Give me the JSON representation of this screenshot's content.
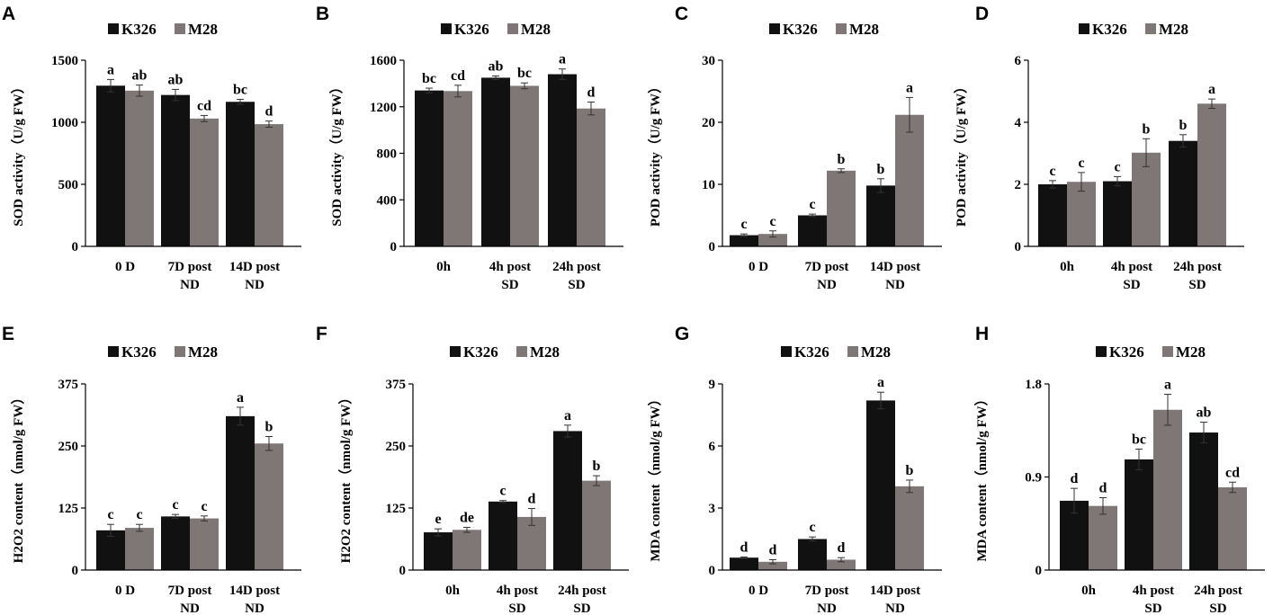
{
  "colors": {
    "K326": "#111111",
    "M28": "#7f7676"
  },
  "chart_data": [
    {
      "letter": "A",
      "type": "bar",
      "ylabel": "SOD activity（U/g FW）",
      "ylim": [
        0,
        1500
      ],
      "yticks": [
        "0",
        "500",
        "1000",
        "1500"
      ],
      "categories": [
        [
          "0 D"
        ],
        [
          "7D post",
          "ND"
        ],
        [
          "14D post",
          "ND"
        ]
      ],
      "series": [
        {
          "name": "K326",
          "values": [
            1295,
            1220,
            1165
          ],
          "errors": [
            50,
            45,
            20
          ],
          "letters": [
            "a",
            "ab",
            "bc"
          ]
        },
        {
          "name": "M28",
          "values": [
            1255,
            1030,
            985
          ],
          "errors": [
            45,
            25,
            25
          ],
          "letters": [
            "ab",
            "cd",
            "d"
          ]
        }
      ]
    },
    {
      "letter": "B",
      "type": "bar",
      "ylabel": "SOD activity（U/g FW）",
      "ylim": [
        0,
        1600
      ],
      "yticks": [
        "0",
        "400",
        "800",
        "1200",
        "1600"
      ],
      "categories": [
        [
          "0h"
        ],
        [
          "4h post",
          "SD"
        ],
        [
          "24h post",
          "SD"
        ]
      ],
      "series": [
        {
          "name": "K326",
          "values": [
            1340,
            1450,
            1480
          ],
          "errors": [
            20,
            15,
            45
          ],
          "letters": [
            "bc",
            "ab",
            "a"
          ]
        },
        {
          "name": "M28",
          "values": [
            1335,
            1380,
            1185
          ],
          "errors": [
            50,
            25,
            55
          ],
          "letters": [
            "cd",
            "bc",
            "d"
          ]
        }
      ]
    },
    {
      "letter": "C",
      "type": "bar",
      "ylabel": "POD activity（U/g FW）",
      "ylim": [
        0,
        30
      ],
      "yticks": [
        "0",
        "10",
        "20",
        "30"
      ],
      "categories": [
        [
          "0 D"
        ],
        [
          "7D post",
          "ND"
        ],
        [
          "14D post",
          "ND"
        ]
      ],
      "series": [
        {
          "name": "K326",
          "values": [
            1.8,
            5.0,
            9.8
          ],
          "errors": [
            0.2,
            0.2,
            1.1
          ],
          "letters": [
            "c",
            "c",
            "b"
          ]
        },
        {
          "name": "M28",
          "values": [
            2.0,
            12.2,
            21.2
          ],
          "errors": [
            0.5,
            0.3,
            2.8
          ],
          "letters": [
            "c",
            "b",
            "a"
          ]
        }
      ]
    },
    {
      "letter": "D",
      "type": "bar",
      "ylabel": "POD activity（U/g FW）",
      "ylim": [
        0,
        6
      ],
      "yticks": [
        "0",
        "2",
        "4",
        "6"
      ],
      "categories": [
        [
          "0h"
        ],
        [
          "4h post",
          "SD"
        ],
        [
          "24h post",
          "SD"
        ]
      ],
      "series": [
        {
          "name": "K326",
          "values": [
            2.0,
            2.1,
            3.4
          ],
          "errors": [
            0.12,
            0.15,
            0.2
          ],
          "letters": [
            "c",
            "c",
            "b"
          ]
        },
        {
          "name": "M28",
          "values": [
            2.08,
            3.02,
            4.6
          ],
          "errors": [
            0.3,
            0.45,
            0.15
          ],
          "letters": [
            "c",
            "b",
            "a"
          ]
        }
      ]
    },
    {
      "letter": "E",
      "type": "bar",
      "ylabel": "H2O2 content（nmol/g FW）",
      "ylim": [
        0,
        375
      ],
      "yticks": [
        "0",
        "125",
        "250",
        "375"
      ],
      "categories": [
        [
          "0 D"
        ],
        [
          "7D post",
          "ND"
        ],
        [
          "14D post",
          "ND"
        ]
      ],
      "series": [
        {
          "name": "K326",
          "values": [
            80,
            108,
            310
          ],
          "errors": [
            12,
            4,
            18
          ],
          "letters": [
            "c",
            "c",
            "a"
          ]
        },
        {
          "name": "M28",
          "values": [
            85,
            104,
            255
          ],
          "errors": [
            7,
            5,
            14
          ],
          "letters": [
            "c",
            "c",
            "b"
          ]
        }
      ]
    },
    {
      "letter": "F",
      "type": "bar",
      "ylabel": "H2O2 content（nmol/g FW）",
      "ylim": [
        0,
        375
      ],
      "yticks": [
        "0",
        "125",
        "250",
        "375"
      ],
      "categories": [
        [
          "0h"
        ],
        [
          "4h post",
          "SD"
        ],
        [
          "24h post",
          "SD"
        ]
      ],
      "series": [
        {
          "name": "K326",
          "values": [
            76,
            138,
            280
          ],
          "errors": [
            7,
            2,
            12
          ],
          "letters": [
            "e",
            "c",
            "a"
          ]
        },
        {
          "name": "M28",
          "values": [
            81,
            107,
            180
          ],
          "errors": [
            5,
            17,
            10
          ],
          "letters": [
            "de",
            "d",
            "b"
          ]
        }
      ]
    },
    {
      "letter": "G",
      "type": "bar",
      "ylabel": "MDA content（nmol/g FW）",
      "ylim": [
        0,
        9
      ],
      "yticks": [
        "0",
        "3",
        "6",
        "9"
      ],
      "categories": [
        [
          "0 D"
        ],
        [
          "7D post",
          "ND"
        ],
        [
          "14D post",
          "ND"
        ]
      ],
      "series": [
        {
          "name": "K326",
          "values": [
            0.6,
            1.5,
            8.2
          ],
          "errors": [
            0.03,
            0.1,
            0.4
          ],
          "letters": [
            "d",
            "c",
            "a"
          ]
        },
        {
          "name": "M28",
          "values": [
            0.4,
            0.5,
            4.05
          ],
          "errors": [
            0.1,
            0.1,
            0.3
          ],
          "letters": [
            "d",
            "d",
            "b"
          ]
        }
      ]
    },
    {
      "letter": "H",
      "type": "bar",
      "ylabel": "MDA content（nmol/g FW）",
      "ylim": [
        0,
        1.8
      ],
      "yticks": [
        "0",
        "0.9",
        "1.8"
      ],
      "categories": [
        [
          "0h"
        ],
        [
          "4h post",
          "SD"
        ],
        [
          "24h post",
          "SD"
        ]
      ],
      "series": [
        {
          "name": "K326",
          "values": [
            0.67,
            1.07,
            1.33
          ],
          "errors": [
            0.12,
            0.1,
            0.1
          ],
          "letters": [
            "d",
            "bc",
            "ab"
          ]
        },
        {
          "name": "M28",
          "values": [
            0.62,
            1.55,
            0.8
          ],
          "errors": [
            0.08,
            0.15,
            0.05
          ],
          "letters": [
            "d",
            "a",
            "cd"
          ]
        }
      ]
    }
  ]
}
